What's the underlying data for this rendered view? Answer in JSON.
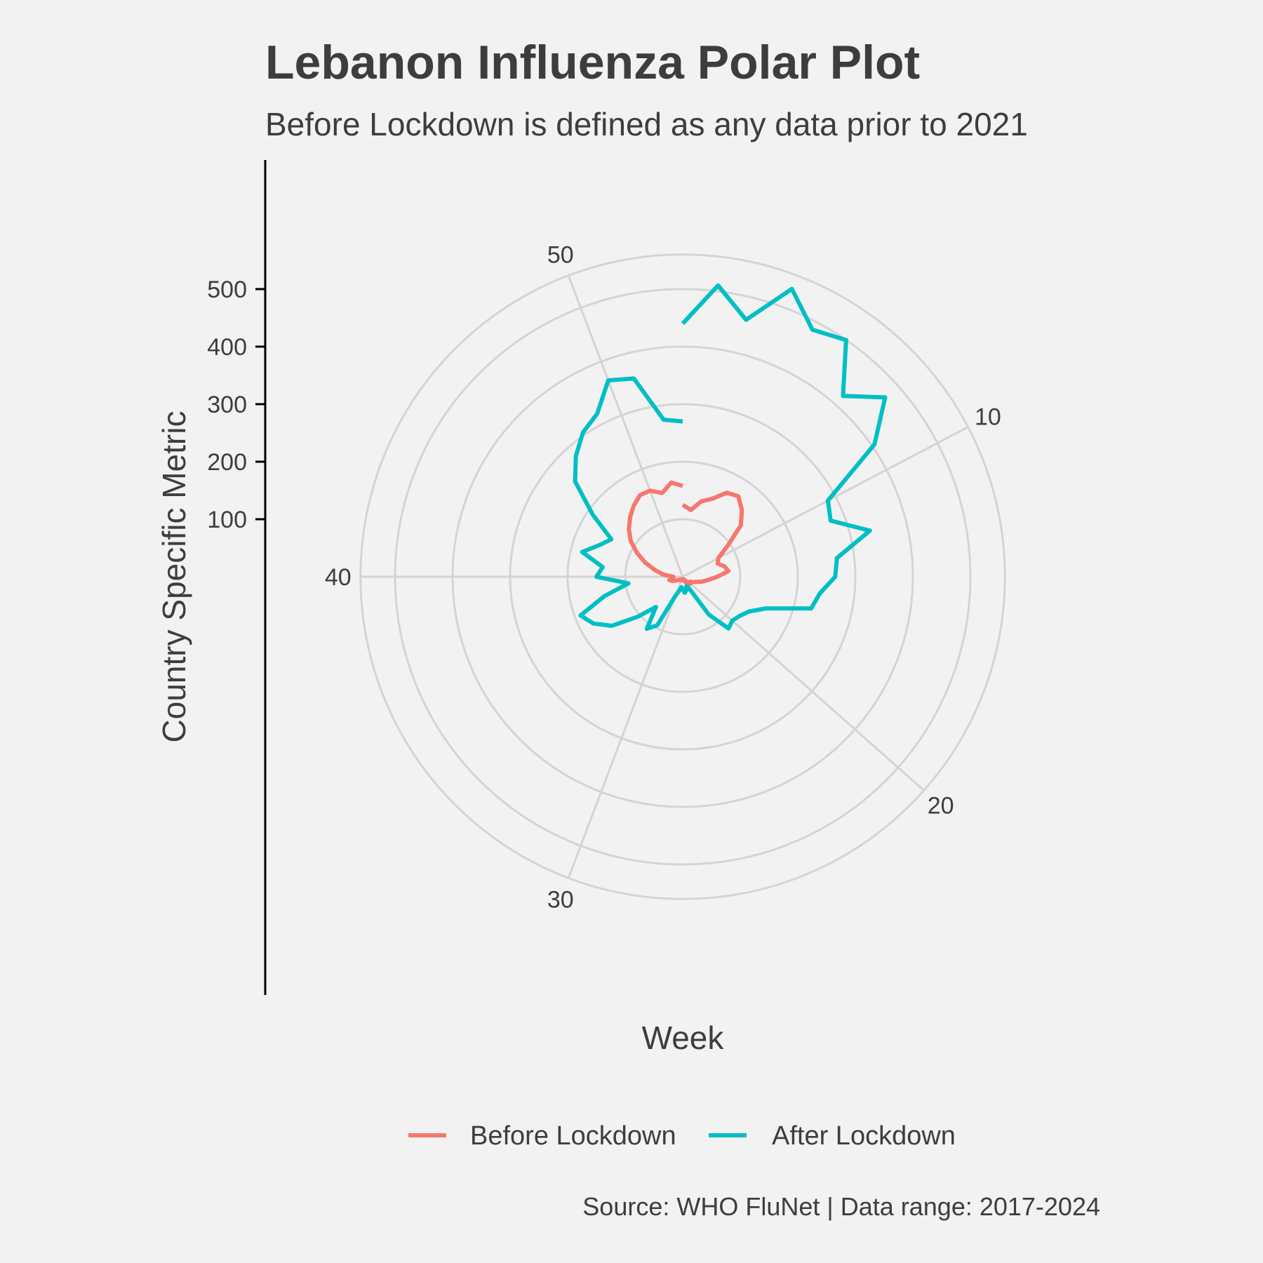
{
  "chart_data": {
    "type": "line",
    "coord": "polar",
    "title": "Lebanon Influenza Polar Plot",
    "subtitle": "Before Lockdown is defined as any data prior to 2021",
    "xlabel": "Week",
    "ylabel": "Country Specific Metric",
    "caption": "Source: WHO FluNet | Data range: 2017-2024",
    "x_ticks": [
      10,
      20,
      30,
      40,
      50
    ],
    "y_ticks": [
      100,
      200,
      300,
      400,
      500
    ],
    "xlim": [
      1,
      53
    ],
    "grid": true,
    "legend_position": "bottom",
    "series": [
      {
        "name": "Before Lockdown",
        "color": "#f8766d",
        "x": [
          1,
          2,
          3,
          4,
          5,
          6,
          7,
          8,
          9,
          10,
          11,
          12,
          13,
          14,
          15,
          16,
          17,
          18,
          19,
          20,
          21,
          22,
          23,
          24,
          25,
          26,
          27,
          28,
          29,
          30,
          31,
          32,
          33,
          34,
          35,
          36,
          37,
          38,
          39,
          40,
          41,
          42,
          43,
          44,
          45,
          46,
          47,
          48,
          49,
          50,
          51,
          52,
          53
        ],
        "y": [
          125,
          117,
          135,
          145,
          165,
          170,
          155,
          135,
          95,
          70,
          65,
          75,
          80,
          60,
          45,
          35,
          25,
          20,
          15,
          18,
          14,
          8,
          12,
          5,
          5,
          4,
          5,
          6,
          5,
          5,
          7,
          6,
          6,
          8,
          10,
          15,
          20,
          24,
          18,
          16,
          35,
          50,
          70,
          90,
          110,
          125,
          138,
          150,
          160,
          160,
          150,
          165,
          158
        ]
      },
      {
        "name": "After Lockdown",
        "color": "#00bfc4",
        "x": [
          1,
          2,
          3,
          4,
          5,
          6,
          7,
          8,
          9,
          10,
          11,
          12,
          13,
          14,
          15,
          16,
          17,
          18,
          19,
          20,
          21,
          22,
          23,
          24,
          25,
          26,
          27,
          28,
          29,
          30,
          31,
          32,
          33,
          34,
          35,
          36,
          37,
          38,
          39,
          40,
          41,
          42,
          43,
          44,
          45,
          46,
          47,
          48,
          49,
          50,
          51,
          52,
          53
        ],
        "y": [
          440,
          510,
          460,
          535,
          485,
          500,
          420,
          470,
          405,
          285,
          275,
          335,
          270,
          265,
          240,
          230,
          155,
          130,
          120,
          115,
          120,
          80,
          20,
          18,
          25,
          28,
          22,
          18,
          25,
          35,
          95,
          110,
          70,
          105,
          150,
          175,
          190,
          140,
          95,
          150,
          140,
          180,
          155,
          140,
          190,
          250,
          280,
          305,
          320,
          365,
          355,
          275,
          270
        ]
      }
    ]
  }
}
